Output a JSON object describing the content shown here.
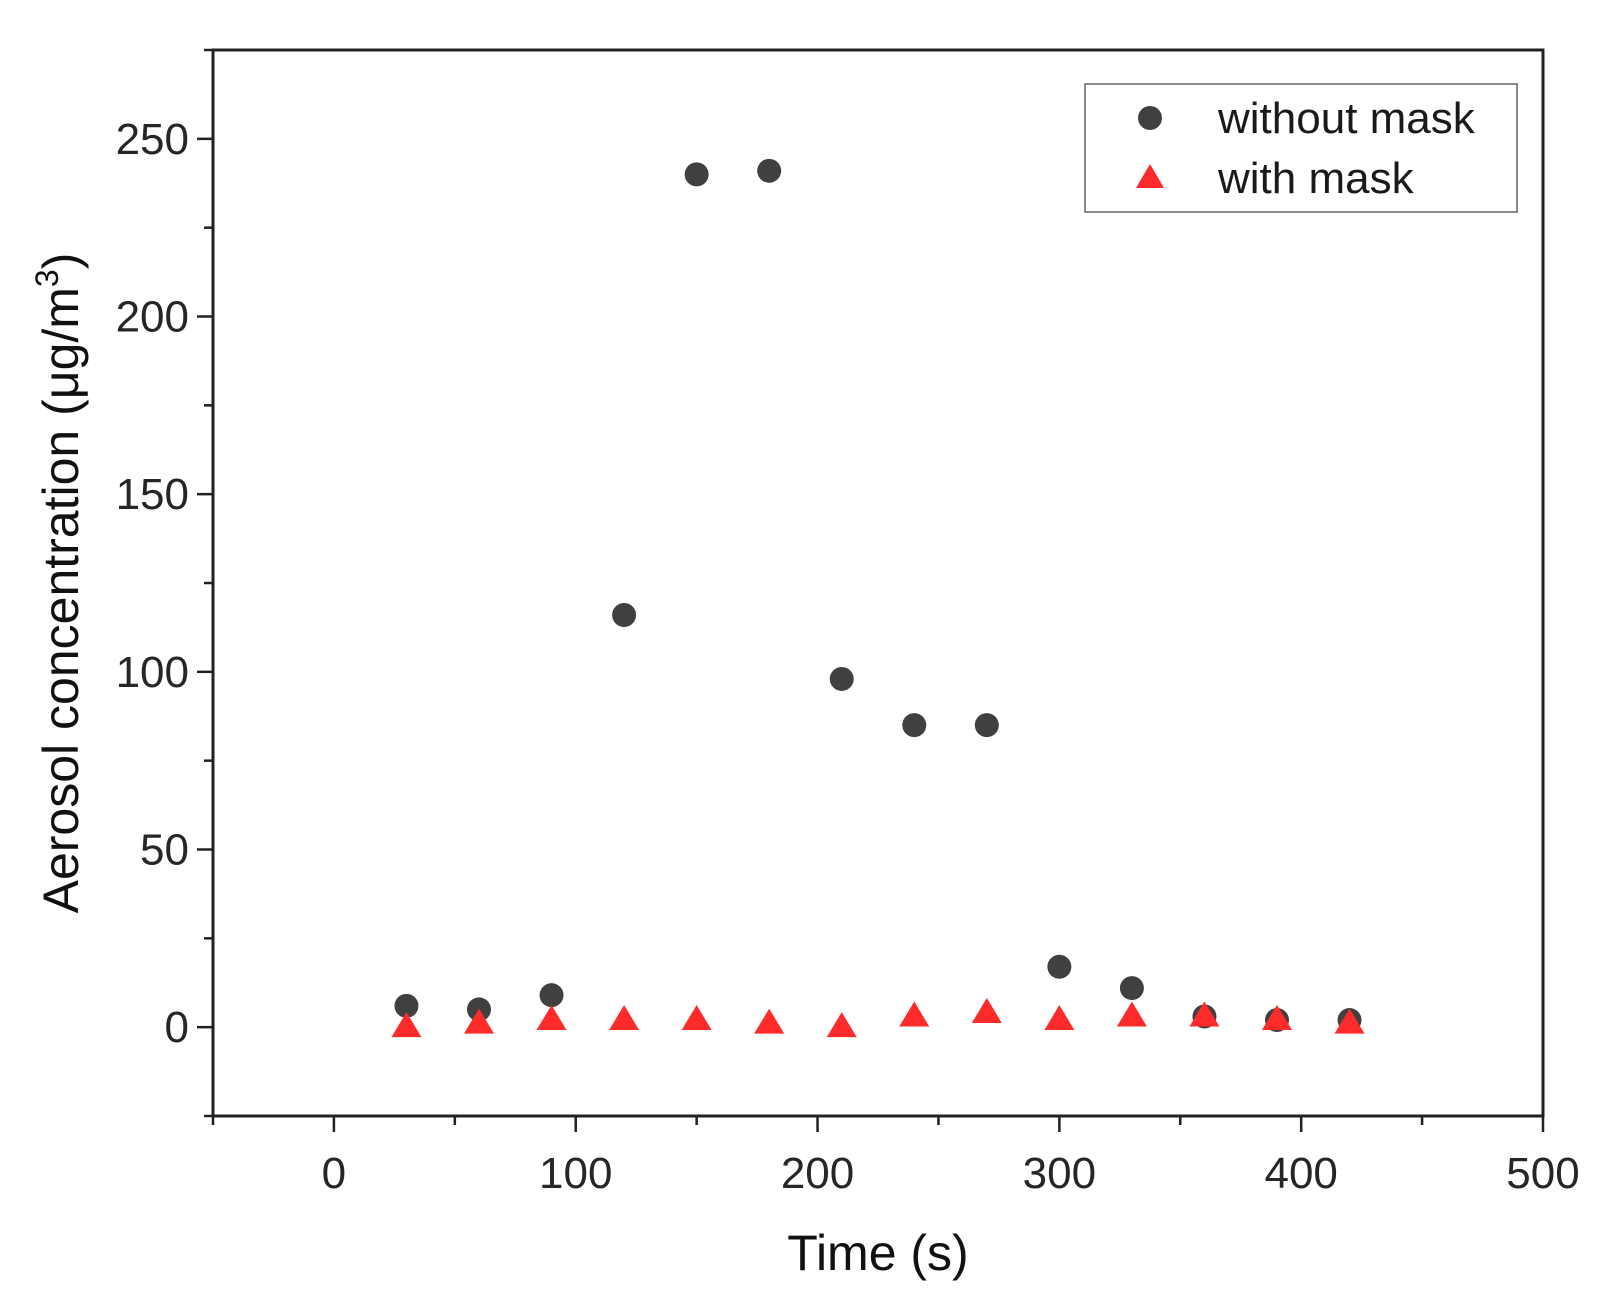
{
  "chart_data": {
    "type": "scatter",
    "title": "",
    "xlabel": "Time (s)",
    "ylabel": {
      "main": "Aerosol concentration (μg/m",
      "superscript": "3",
      "close": ")"
    },
    "xlim": [
      -50,
      500
    ],
    "ylim": [
      -25,
      275
    ],
    "x_ticks": [
      0,
      100,
      200,
      300,
      400,
      500
    ],
    "y_ticks": [
      0,
      50,
      100,
      150,
      200,
      250
    ],
    "x_tick_labels": [
      "0",
      "100",
      "200",
      "300",
      "400",
      "500"
    ],
    "y_tick_labels": [
      "0",
      "50",
      "100",
      "150",
      "200",
      "250"
    ],
    "grid": false,
    "legend_position": "top-right",
    "series": [
      {
        "name": "without mask",
        "marker": "circle",
        "color": "#404040",
        "x": [
          30,
          60,
          90,
          120,
          150,
          180,
          210,
          240,
          270,
          300,
          330,
          360,
          390,
          420
        ],
        "y": [
          6,
          5,
          9,
          116,
          240,
          241,
          98,
          85,
          85,
          17,
          11,
          3,
          2,
          2
        ]
      },
      {
        "name": "with mask",
        "marker": "triangle",
        "color": "#ff2a2a",
        "x": [
          30,
          60,
          90,
          120,
          150,
          180,
          210,
          240,
          270,
          300,
          330,
          360,
          390,
          420
        ],
        "y": [
          0,
          1,
          2,
          2,
          2,
          1,
          0,
          3,
          4,
          2,
          3,
          3,
          2,
          1
        ]
      }
    ]
  }
}
